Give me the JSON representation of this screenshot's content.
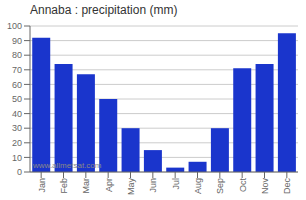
{
  "chart_data": {
    "type": "bar",
    "title": "Annaba : precipitation (mm)",
    "categories": [
      "Jan",
      "Feb",
      "Mar",
      "Apr",
      "May",
      "Jun",
      "Jul",
      "Aug",
      "Sep",
      "Oct",
      "Nov",
      "Dec"
    ],
    "values": [
      92,
      74,
      67,
      50,
      30,
      15,
      3,
      7,
      30,
      71,
      74,
      95
    ],
    "color": "#1a35cc",
    "ylim": [
      0,
      100
    ],
    "yticks": [
      0,
      10,
      20,
      30,
      40,
      50,
      60,
      70,
      80,
      90,
      100
    ],
    "grid": true,
    "annotations": [
      "www.allmetsat.com"
    ]
  }
}
